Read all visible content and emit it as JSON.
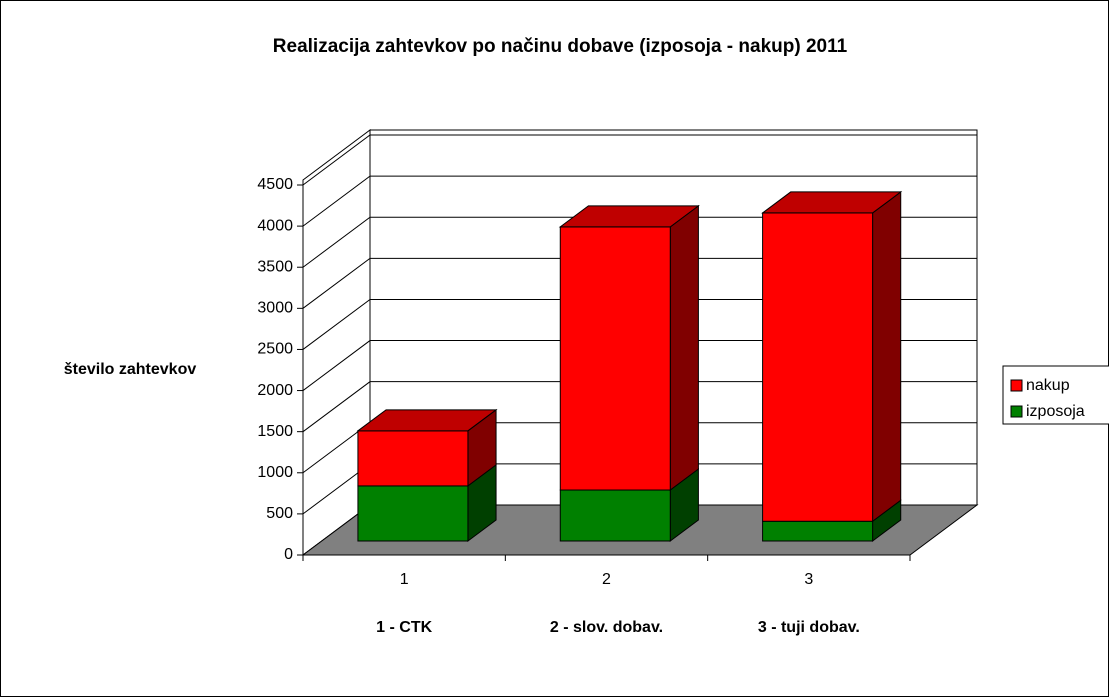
{
  "chart_data": {
    "type": "bar3d_stacked",
    "title": "Realizacija zahtevkov po načinu dobave (izposoja - nakup) 2011",
    "y_label": "število zahtevkov",
    "categories": [
      "1",
      "2",
      "3"
    ],
    "annotations": [
      "1 - CTK",
      "2 - slov. dobav.",
      "3 - tuji dobav."
    ],
    "series": [
      {
        "name": "izposoja",
        "color": "#008000",
        "values": [
          670,
          620,
          240
        ]
      },
      {
        "name": "nakup",
        "color": "#ff0000",
        "values": [
          670,
          3200,
          3750
        ]
      }
    ],
    "ylim": [
      0,
      4500
    ],
    "yticks": [
      0,
      500,
      1000,
      1500,
      2000,
      2500,
      3000,
      3500,
      4000,
      4500
    ],
    "grid": true,
    "legend": "right"
  }
}
